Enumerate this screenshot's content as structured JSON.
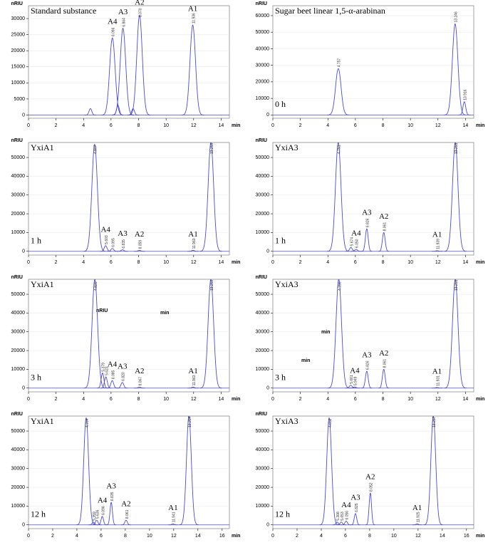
{
  "chart_data": [
    {
      "type": "chromatogram",
      "title": "Standard substance",
      "ylabel": "nRIU",
      "xlabel": "min",
      "color": "#4b4bd6",
      "xlim": [
        0,
        14.6
      ],
      "xticks": [
        0,
        2,
        4,
        6,
        8,
        10,
        12,
        14
      ],
      "ylim": [
        -1000,
        34000
      ],
      "yticks": [
        0,
        5000,
        10000,
        15000,
        20000,
        25000,
        30000
      ],
      "x": [
        4.5,
        6.096,
        6.5,
        6.864,
        7.6,
        8.07,
        11.936
      ],
      "values": [
        2000,
        24000,
        3000,
        27000,
        2000,
        31000,
        28000
      ],
      "x_labels": [
        null,
        "6.096",
        null,
        "6.864",
        null,
        "8.070",
        "11.936"
      ],
      "peak_names": [
        null,
        "A4",
        null,
        "A3",
        null,
        "A2",
        "A1"
      ]
    },
    {
      "type": "chromatogram",
      "title": "Sugar beet linear 1,5-α-arabinan",
      "annotation": "0 h",
      "ylabel": "nRIU",
      "xlabel": "min",
      "color": "#4b4bd6",
      "xlim": [
        0,
        14.6
      ],
      "xticks": [
        0,
        2,
        4,
        6,
        8,
        10,
        12,
        14
      ],
      "ylim": [
        -2000,
        66000
      ],
      "yticks": [
        0,
        10000,
        20000,
        30000,
        40000,
        50000,
        60000
      ],
      "x": [
        4.757,
        13.246,
        13.916
      ],
      "values": [
        28000,
        55000,
        8000
      ],
      "x_labels": [
        "4.757",
        "13.246",
        "13.916"
      ],
      "peak_names": [
        null,
        null,
        null
      ]
    },
    {
      "type": "chromatogram",
      "title": "YxiA1",
      "annotation": "1 h",
      "ylabel": "nRIU",
      "xlabel": "min",
      "color": "#4b4bd6",
      "xlim": [
        0,
        14.6
      ],
      "xticks": [
        0,
        2,
        4,
        6,
        8,
        10,
        12,
        14
      ],
      "ylim": [
        -2000,
        58000
      ],
      "yticks": [
        0,
        10000,
        20000,
        30000,
        40000,
        50000
      ],
      "x": [
        4.807,
        5.603,
        6.095,
        6.835,
        8.059,
        11.96,
        13.255
      ],
      "values": [
        57000,
        3000,
        1500,
        800,
        500,
        500,
        58000
      ],
      "x_labels": [
        "4.807",
        "5.603",
        "6.095",
        "6.835",
        "8.059",
        "11.960",
        "13.255"
      ],
      "peak_names": [
        null,
        "A4",
        null,
        "A3",
        "A2",
        "A1",
        null
      ]
    },
    {
      "type": "chromatogram",
      "title": "YxiA3",
      "annotation": "1 h",
      "ylabel": "nRIU",
      "xlabel": "min",
      "color": "#4b4bd6",
      "xlim": [
        0,
        14.6
      ],
      "xticks": [
        0,
        2,
        4,
        6,
        8,
        10,
        12,
        14
      ],
      "ylim": [
        -2000,
        58000
      ],
      "yticks": [
        0,
        10000,
        20000,
        30000,
        40000,
        50000
      ],
      "x": [
        4.751,
        5.674,
        6.05,
        6.826,
        8.061,
        11.939,
        13.255
      ],
      "values": [
        58000,
        2000,
        1000,
        12000,
        10000,
        300,
        58000
      ],
      "x_labels": [
        "4.751",
        "5.674",
        "6.050",
        "6.826",
        "8.061",
        "11.939",
        "13.255"
      ],
      "peak_names": [
        null,
        null,
        "A4",
        "A3",
        "A2",
        "A1",
        null
      ]
    },
    {
      "type": "chromatogram",
      "title": "YxiA1",
      "annotation": "3 h",
      "ylabel": "nRIU",
      "xlabel": "min",
      "color": "#4b4bd6",
      "xlim": [
        0,
        14.6
      ],
      "xticks": [
        0,
        2,
        4,
        6,
        8,
        10,
        12,
        14
      ],
      "ylim": [
        -2000,
        58000
      ],
      "yticks": [
        0,
        10000,
        20000,
        30000,
        40000,
        50000
      ],
      "x": [
        4.82,
        5.379,
        5.623,
        6.085,
        6.82,
        8.067,
        11.963,
        13.253
      ],
      "values": [
        58000,
        8000,
        6000,
        4000,
        3000,
        500,
        500,
        58000
      ],
      "x_labels": [
        "4.820",
        "5.379",
        "5.623",
        "6.085",
        "6.820",
        "8.067",
        "11.963",
        "13.253"
      ],
      "peak_names": [
        null,
        null,
        null,
        "A4",
        "A3",
        "A2",
        "A1",
        null
      ],
      "extra_labels": [
        "nRIU",
        "min"
      ]
    },
    {
      "type": "chromatogram",
      "title": "YxiA3",
      "annotation": "3 h",
      "ylabel": "nRIU",
      "xlabel": "min",
      "color": "#4b4bd6",
      "xlim": [
        0,
        14.6
      ],
      "xticks": [
        0,
        2,
        4,
        6,
        8,
        10,
        12,
        14
      ],
      "ylim": [
        -2000,
        58000
      ],
      "yticks": [
        0,
        10000,
        20000,
        30000,
        40000,
        50000
      ],
      "x": [
        4.79,
        5.661,
        5.949,
        6.826,
        8.061,
        11.931,
        13.255
      ],
      "values": [
        58000,
        1500,
        600,
        9000,
        10000,
        300,
        58000
      ],
      "x_labels": [
        "4.790",
        "5.661",
        "5.949",
        "6.826",
        "8.061",
        "11.931",
        "13.255"
      ],
      "peak_names": [
        null,
        null,
        "A4",
        "A3",
        "A2",
        "A1",
        null
      ],
      "extra_labels": [
        "min",
        "min"
      ]
    },
    {
      "type": "chromatogram",
      "title": "YxiA1",
      "annotation": "12 h",
      "ylabel": "nRIU",
      "xlabel": "min",
      "color": "#4b4bd6",
      "xlim": [
        0,
        16.6
      ],
      "xticks": [
        0,
        2,
        4,
        6,
        8,
        10,
        12,
        14,
        16
      ],
      "ylim": [
        -2000,
        58000
      ],
      "yticks": [
        0,
        10000,
        20000,
        30000,
        40000,
        50000
      ],
      "x": [
        4.764,
        5.359,
        5.636,
        6.096,
        6.835,
        8.061,
        11.941,
        13.254
      ],
      "values": [
        57000,
        1500,
        2500,
        4500,
        12000,
        2500,
        500,
        58000
      ],
      "x_labels": [
        "4.764",
        "5.359",
        "5.636",
        "6.096",
        "6.835",
        "8.061",
        "11.941",
        "13.254"
      ],
      "peak_names": [
        null,
        null,
        null,
        "A4",
        "A3",
        "A2",
        "A1",
        null
      ]
    },
    {
      "type": "chromatogram",
      "title": "YxiA3",
      "annotation": "12 h",
      "ylabel": "nRIU",
      "xlabel": "min",
      "color": "#4b4bd6",
      "xlim": [
        0,
        16.6
      ],
      "xticks": [
        0,
        2,
        4,
        6,
        8,
        10,
        12,
        14,
        16
      ],
      "ylim": [
        -2000,
        58000
      ],
      "yticks": [
        0,
        10000,
        20000,
        30000,
        40000,
        50000
      ],
      "x": [
        4.652,
        5.308,
        5.653,
        6.056,
        6.825,
        8.052,
        11.925,
        13.257
      ],
      "values": [
        57000,
        1500,
        1500,
        2000,
        6000,
        17000,
        500,
        58000
      ],
      "x_labels": [
        "4.652",
        "5.308",
        "5.653",
        "6.056",
        "6.825",
        "8.052",
        "11.925",
        "13.257"
      ],
      "peak_names": [
        null,
        null,
        null,
        "A4",
        "A3",
        "A2",
        "A1",
        null
      ]
    }
  ]
}
